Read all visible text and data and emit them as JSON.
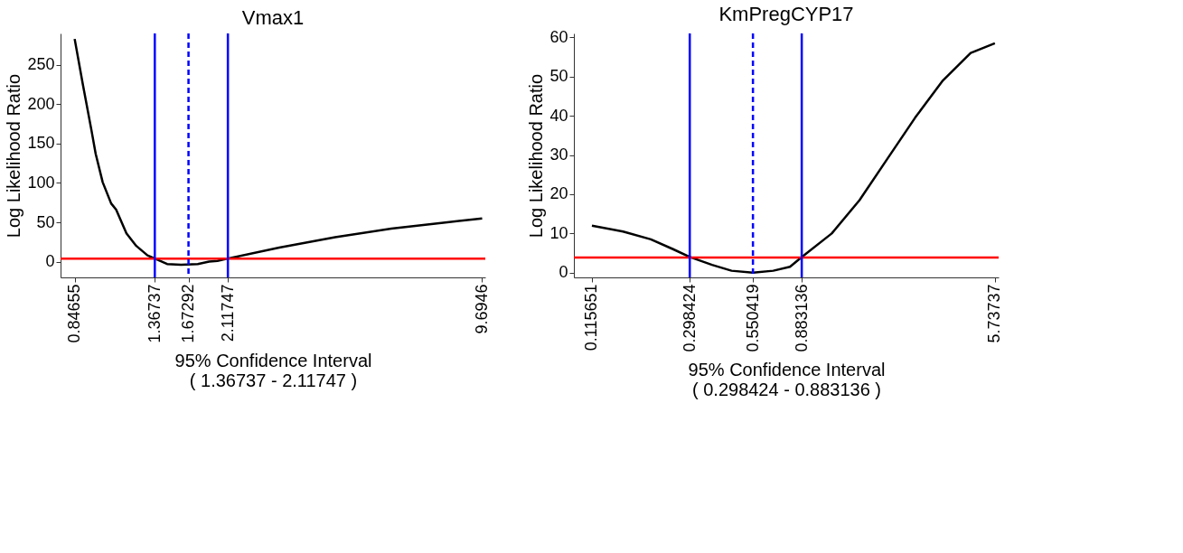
{
  "chart_data": [
    {
      "type": "line",
      "title": "Vmax1",
      "xlabel": "95% Confidence Interval",
      "ylabel": "Log Likelihood Ratio",
      "annotations": [
        "( 1.36737 - 2.11747 )"
      ],
      "log": "x",
      "grid": false,
      "legend": false,
      "marker": "none",
      "line_style": "solid",
      "xlim": [
        0.778,
        9.88
      ],
      "ylim": [
        -20,
        290
      ],
      "xticks": [
        0.84655,
        1.36737,
        1.67292,
        2.11747,
        9.6946
      ],
      "yticks": [
        0,
        50,
        100,
        150,
        200,
        250
      ],
      "series": [
        {
          "color": "#000000",
          "x": [
            0.84655,
            0.89,
            0.936,
            0.96,
            1.001,
            1.053,
            1.085,
            1.154,
            1.224,
            1.309,
            1.36737,
            1.472,
            1.6,
            1.768,
            1.892,
            1.989,
            2.11747,
            2.879,
            4.024,
            5.63,
            7.87,
            9.6946
          ],
          "values": [
            283,
            224,
            167,
            137,
            101,
            74,
            66,
            36,
            20,
            8,
            4,
            -3,
            -4,
            -3,
            0,
            1,
            4,
            18,
            31,
            42,
            50,
            55
          ]
        }
      ],
      "ref_lines": [
        {
          "axis": "y",
          "value": 3.84,
          "color": "#ff0000",
          "line_style": "solid"
        },
        {
          "axis": "x",
          "value": 1.36737,
          "color": "#0000ff",
          "line_style": "solid"
        },
        {
          "axis": "x",
          "value": 1.67292,
          "color": "#0000ff",
          "line_style": "dashed"
        },
        {
          "axis": "x",
          "value": 2.11747,
          "color": "#0000ff",
          "line_style": "solid"
        }
      ]
    },
    {
      "type": "line",
      "title": "KmPregCYP17",
      "xlabel": "95% Confidence Interval",
      "ylabel": "Log Likelihood Ratio",
      "annotations": [
        "( 0.298424 - 0.883136 )"
      ],
      "log": "x",
      "grid": false,
      "legend": false,
      "marker": "none",
      "line_style": "solid",
      "xlim": [
        0.0971,
        5.95
      ],
      "ylim": [
        -1.2,
        61
      ],
      "xticks": [
        0.115651,
        0.298424,
        0.550419,
        0.883136,
        5.73737
      ],
      "yticks": [
        0,
        10,
        20,
        30,
        40,
        50,
        60
      ],
      "series": [
        {
          "color": "#000000",
          "x": [
            0.115651,
            0.1564,
            0.2047,
            0.2538,
            0.298424,
            0.3703,
            0.4474,
            0.550419,
            0.67,
            0.788,
            0.883136,
            1.181,
            1.546,
            2.023,
            2.648,
            3.467,
            4.538,
            5.73737
          ],
          "values": [
            12,
            10.5,
            8.5,
            6,
            4,
            2,
            0.5,
            0,
            0.5,
            1.5,
            4,
            10,
            18.5,
            29,
            39.5,
            49,
            56,
            58.5
          ]
        }
      ],
      "ref_lines": [
        {
          "axis": "y",
          "value": 3.84,
          "color": "#ff0000",
          "line_style": "solid"
        },
        {
          "axis": "x",
          "value": 0.298424,
          "color": "#0000ff",
          "line_style": "solid"
        },
        {
          "axis": "x",
          "value": 0.550419,
          "color": "#0000ff",
          "line_style": "dashed"
        },
        {
          "axis": "x",
          "value": 0.883136,
          "color": "#0000ff",
          "line_style": "solid"
        }
      ]
    }
  ]
}
